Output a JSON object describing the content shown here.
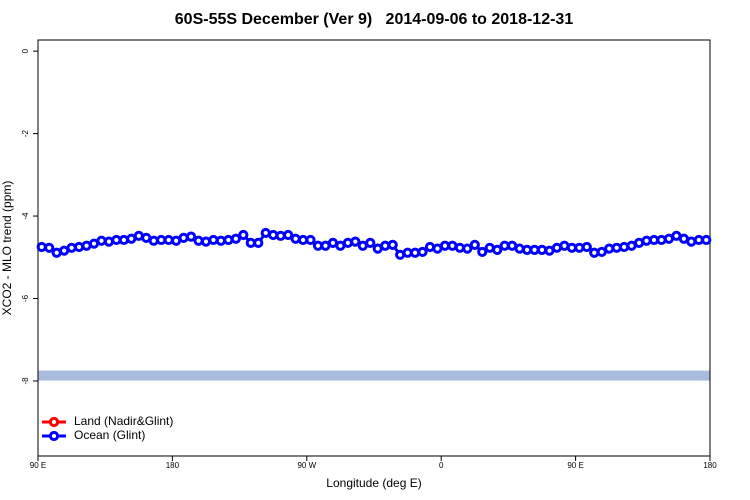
{
  "chart_data": {
    "type": "line",
    "title": "60S-55S December (Ver 9)   2014-09-06 to 2018-12-31",
    "x_label": "Longitude (deg E)",
    "y_label": "XCO2 - MLO trend (ppm)",
    "x": [
      92.5,
      97.5,
      102.5,
      107.5,
      112.5,
      117.5,
      122.5,
      127.5,
      132.5,
      137.5,
      142.5,
      147.5,
      152.5,
      157.5,
      162.5,
      167.5,
      172.5,
      177.5,
      182.5,
      187.5,
      192.5,
      197.5,
      202.5,
      207.5,
      212.5,
      217.5,
      222.5,
      227.5,
      232.5,
      237.5,
      242.5,
      247.5,
      252.5,
      257.5,
      262.5,
      267.5,
      272.5,
      277.5,
      282.5,
      287.5,
      292.5,
      297.5,
      302.5,
      307.5,
      312.5,
      317.5,
      322.5,
      327.5,
      332.5,
      337.5,
      342.5,
      347.5,
      352.5,
      357.5,
      362.5,
      367.5,
      372.5,
      377.5,
      382.5,
      387.5,
      392.5,
      397.5,
      402.5,
      407.5,
      412.5,
      417.5,
      422.5,
      427.5,
      432.5,
      437.5,
      442.5,
      447.5,
      452.5,
      457.5,
      462.5,
      467.5,
      472.5,
      477.5,
      482.5,
      487.5,
      492.5,
      497.5,
      502.5,
      507.5,
      512.5,
      517.5,
      522.5,
      527.5,
      532.5,
      537.5
    ],
    "series": [
      {
        "name": "Land (Nadir&Glint)",
        "color": "#ff0000",
        "values": [
          null,
          null,
          null,
          null,
          null,
          null,
          null,
          null,
          null,
          null,
          null,
          null,
          null,
          null,
          null,
          null,
          null,
          null,
          null,
          null,
          null,
          null,
          null,
          null,
          null,
          null,
          null,
          null,
          null,
          null,
          null,
          null,
          null,
          null,
          null,
          null,
          null,
          null,
          null,
          null,
          null,
          null,
          null,
          null,
          null,
          null,
          null,
          null,
          null,
          null,
          null,
          null,
          null,
          null,
          null,
          null,
          null,
          null,
          null,
          null,
          null,
          null,
          null,
          null,
          null,
          null,
          null,
          null,
          null,
          null,
          null,
          null,
          null,
          null,
          null,
          null,
          null,
          null,
          null,
          null,
          null,
          null,
          null,
          null,
          null,
          null,
          null,
          null,
          null,
          null
        ]
      },
      {
        "name": "Ocean (Glint)",
        "color": "#0000ff",
        "values": [
          -4.75,
          -4.77,
          -4.89,
          -4.84,
          -4.77,
          -4.75,
          -4.72,
          -4.67,
          -4.6,
          -4.62,
          -4.58,
          -4.58,
          -4.55,
          -4.48,
          -4.53,
          -4.6,
          -4.58,
          -4.58,
          -4.6,
          -4.53,
          -4.5,
          -4.6,
          -4.62,
          -4.58,
          -4.6,
          -4.58,
          -4.55,
          -4.46,
          -4.65,
          -4.65,
          -4.41,
          -4.46,
          -4.48,
          -4.46,
          -4.55,
          -4.58,
          -4.58,
          -4.72,
          -4.72,
          -4.65,
          -4.72,
          -4.65,
          -4.62,
          -4.72,
          -4.65,
          -4.79,
          -4.72,
          -4.7,
          -4.94,
          -4.89,
          -4.89,
          -4.87,
          -4.75,
          -4.79,
          -4.72,
          -4.72,
          -4.77,
          -4.79,
          -4.7,
          -4.87,
          -4.77,
          -4.82,
          -4.72,
          -4.72,
          -4.79,
          -4.82,
          -4.82,
          -4.82,
          -4.84,
          -4.77,
          -4.72,
          -4.77,
          -4.77,
          -4.75,
          -4.89,
          -4.87,
          -4.79,
          -4.77,
          -4.75,
          -4.72,
          -4.65,
          -4.6,
          -4.58,
          -4.58,
          -4.55,
          -4.48,
          -4.55,
          -4.62,
          -4.58,
          -4.58
        ]
      }
    ],
    "reference_band": {
      "value": -7.87,
      "color": "#a8bddd"
    },
    "xlim": [
      90,
      540
    ],
    "xticks": [
      {
        "value": 90,
        "label": "90 E"
      },
      {
        "value": 180,
        "label": "180"
      },
      {
        "value": 270,
        "label": "90 W"
      },
      {
        "value": 360,
        "label": "0"
      },
      {
        "value": 450,
        "label": "90 E"
      },
      {
        "value": 540,
        "label": "180"
      }
    ],
    "ylim": [
      -9.82,
      0.27
    ],
    "yticks": [
      0,
      -2,
      -4,
      -6,
      -8
    ],
    "legend": "bottom-left"
  }
}
